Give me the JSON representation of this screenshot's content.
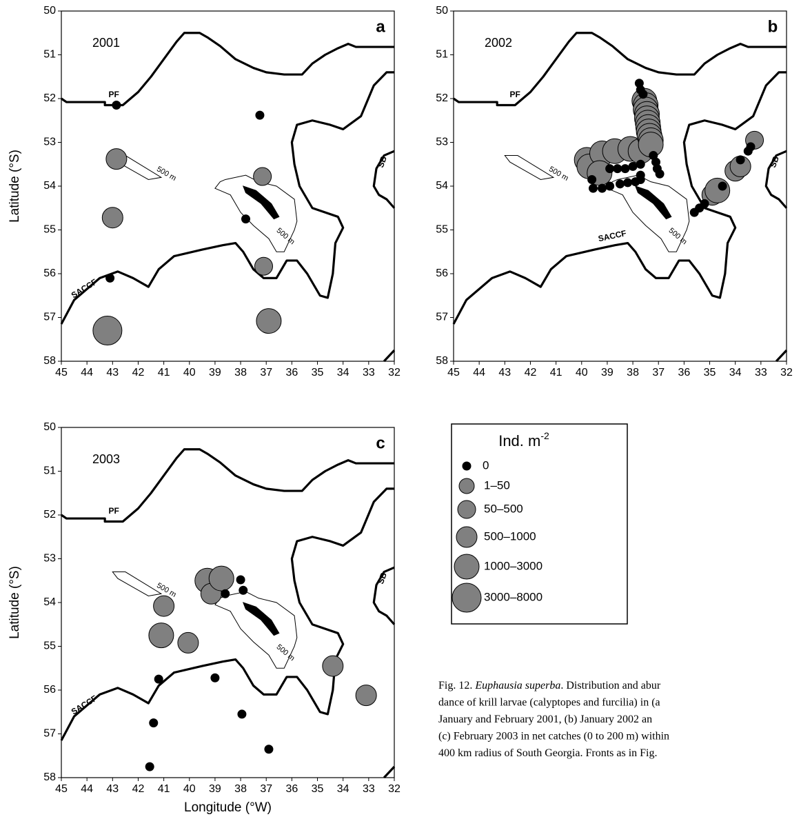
{
  "chart_data": [
    {
      "type": "scatter",
      "panel": "a",
      "year": "2001",
      "ylabel": "Latitude (°S)",
      "xlim": [
        45,
        32
      ],
      "ylim": [
        50,
        58
      ],
      "xticks": [
        45,
        44,
        43,
        42,
        41,
        40,
        39,
        38,
        37,
        36,
        35,
        34,
        33,
        32
      ],
      "yticks": [
        50,
        51,
        52,
        53,
        54,
        55,
        56,
        57,
        58
      ],
      "annotations": [
        "PF",
        "SACCF",
        "SB",
        "500 m",
        "500 m"
      ],
      "x": [
        42.85,
        37.25,
        37.8,
        43.1,
        42.85,
        43.0,
        37.15,
        37.1,
        36.9,
        43.2
      ],
      "values": [
        52.15,
        52.38,
        54.75,
        56.1,
        53.38,
        54.72,
        53.78,
        55.83,
        57.08,
        57.3
      ],
      "sizes": [
        0,
        0,
        0,
        0,
        3,
        3,
        2,
        2,
        4,
        5
      ]
    },
    {
      "type": "scatter",
      "panel": "b",
      "year": "2002",
      "xlim": [
        45,
        32
      ],
      "ylim": [
        50,
        58
      ],
      "xticks": [
        45,
        44,
        43,
        42,
        41,
        40,
        39,
        38,
        37,
        36,
        35,
        34,
        33,
        32
      ],
      "yticks": [
        50,
        51,
        52,
        53,
        54,
        55,
        56,
        57,
        58
      ],
      "annotations": [
        "PF",
        "SACCF",
        "SB",
        "500 m",
        "500 m"
      ],
      "x": [
        39.8,
        39.7,
        39.2,
        38.7,
        38.1,
        37.7,
        39.3,
        37.55,
        37.5,
        37.5,
        37.45,
        37.45,
        37.42,
        37.4,
        37.38,
        37.35,
        37.3,
        37.3,
        34.9,
        34.7,
        34.0,
        33.8,
        33.25,
        37.75,
        37.7,
        37.6,
        37.2,
        37.1,
        37.05,
        36.95,
        39.6,
        39.55,
        39.2,
        38.9,
        38.5,
        38.2,
        37.9,
        38.9,
        38.6,
        38.3,
        38.0,
        37.7,
        37.7,
        37.7,
        35.6,
        35.4,
        35.2,
        34.5,
        33.8,
        33.5,
        33.4
      ],
      "values": [
        53.4,
        53.55,
        53.25,
        53.2,
        53.15,
        53.2,
        53.7,
        52.05,
        52.15,
        52.25,
        52.35,
        52.45,
        52.55,
        52.65,
        52.75,
        52.85,
        52.95,
        53.05,
        54.2,
        54.1,
        53.65,
        53.55,
        52.95,
        51.65,
        51.8,
        51.9,
        53.3,
        53.45,
        53.6,
        53.72,
        53.85,
        54.05,
        54.05,
        54.0,
        53.95,
        53.92,
        53.9,
        53.6,
        53.6,
        53.6,
        53.55,
        53.5,
        53.75,
        53.85,
        54.6,
        54.5,
        54.4,
        54.0,
        53.4,
        53.2,
        53.1
      ],
      "sizes": [
        4,
        4,
        4,
        4,
        4,
        4,
        4,
        4,
        4,
        4,
        4,
        4,
        4,
        4,
        4,
        4,
        4,
        4,
        3,
        4,
        3,
        3,
        2,
        0,
        0,
        0,
        0,
        0,
        0,
        0,
        0,
        0,
        0,
        0,
        0,
        0,
        0,
        0,
        0,
        0,
        0,
        0,
        0,
        0,
        0,
        0,
        0,
        0,
        0,
        0,
        0
      ]
    },
    {
      "type": "scatter",
      "panel": "c",
      "year": "2003",
      "ylabel": "Latitude (°S)",
      "xlabel": "Longitude (°W)",
      "xlim": [
        45,
        32
      ],
      "ylim": [
        50,
        58
      ],
      "xticks": [
        45,
        44,
        43,
        42,
        41,
        40,
        39,
        38,
        37,
        36,
        35,
        34,
        33,
        32
      ],
      "yticks": [
        50,
        51,
        52,
        53,
        54,
        55,
        56,
        57,
        58
      ],
      "annotations": [
        "PF",
        "SACCF",
        "SB",
        "500 m",
        "500 m"
      ],
      "x": [
        39.3,
        39.15,
        38.75,
        41.0,
        41.1,
        40.05,
        34.4,
        33.1,
        38.0,
        37.9,
        38.6,
        41.2,
        39.0,
        37.95,
        41.4,
        36.9,
        41.55
      ],
      "values": [
        53.5,
        53.8,
        53.45,
        54.08,
        54.75,
        54.92,
        55.45,
        56.12,
        53.48,
        53.72,
        53.8,
        55.75,
        55.72,
        56.55,
        56.75,
        57.35,
        57.75
      ],
      "sizes": [
        4,
        3,
        4,
        3,
        4,
        3,
        3,
        3,
        0,
        0,
        0,
        0,
        0,
        0,
        0,
        0,
        0
      ]
    }
  ],
  "legend": {
    "title": "Ind. m",
    "title_exponent": "-2",
    "classes": [
      "0",
      "1–50",
      "50–500",
      "500–1000",
      "1000–3000",
      "3000–8000"
    ]
  },
  "caption": {
    "lines": [
      [
        "Fig. 12. ",
        "Euphausia superba",
        ". Distribution and abur"
      ],
      [
        "dance of krill larvae (calyptopes and furcilia) in (a"
      ],
      [
        "January and February 2001, (b) January 2002 an"
      ],
      [
        "(c) February 2003 in net catches (0 to 200 m) within"
      ],
      [
        "400 km radius of South Georgia. Fronts as in Fig."
      ]
    ]
  }
}
